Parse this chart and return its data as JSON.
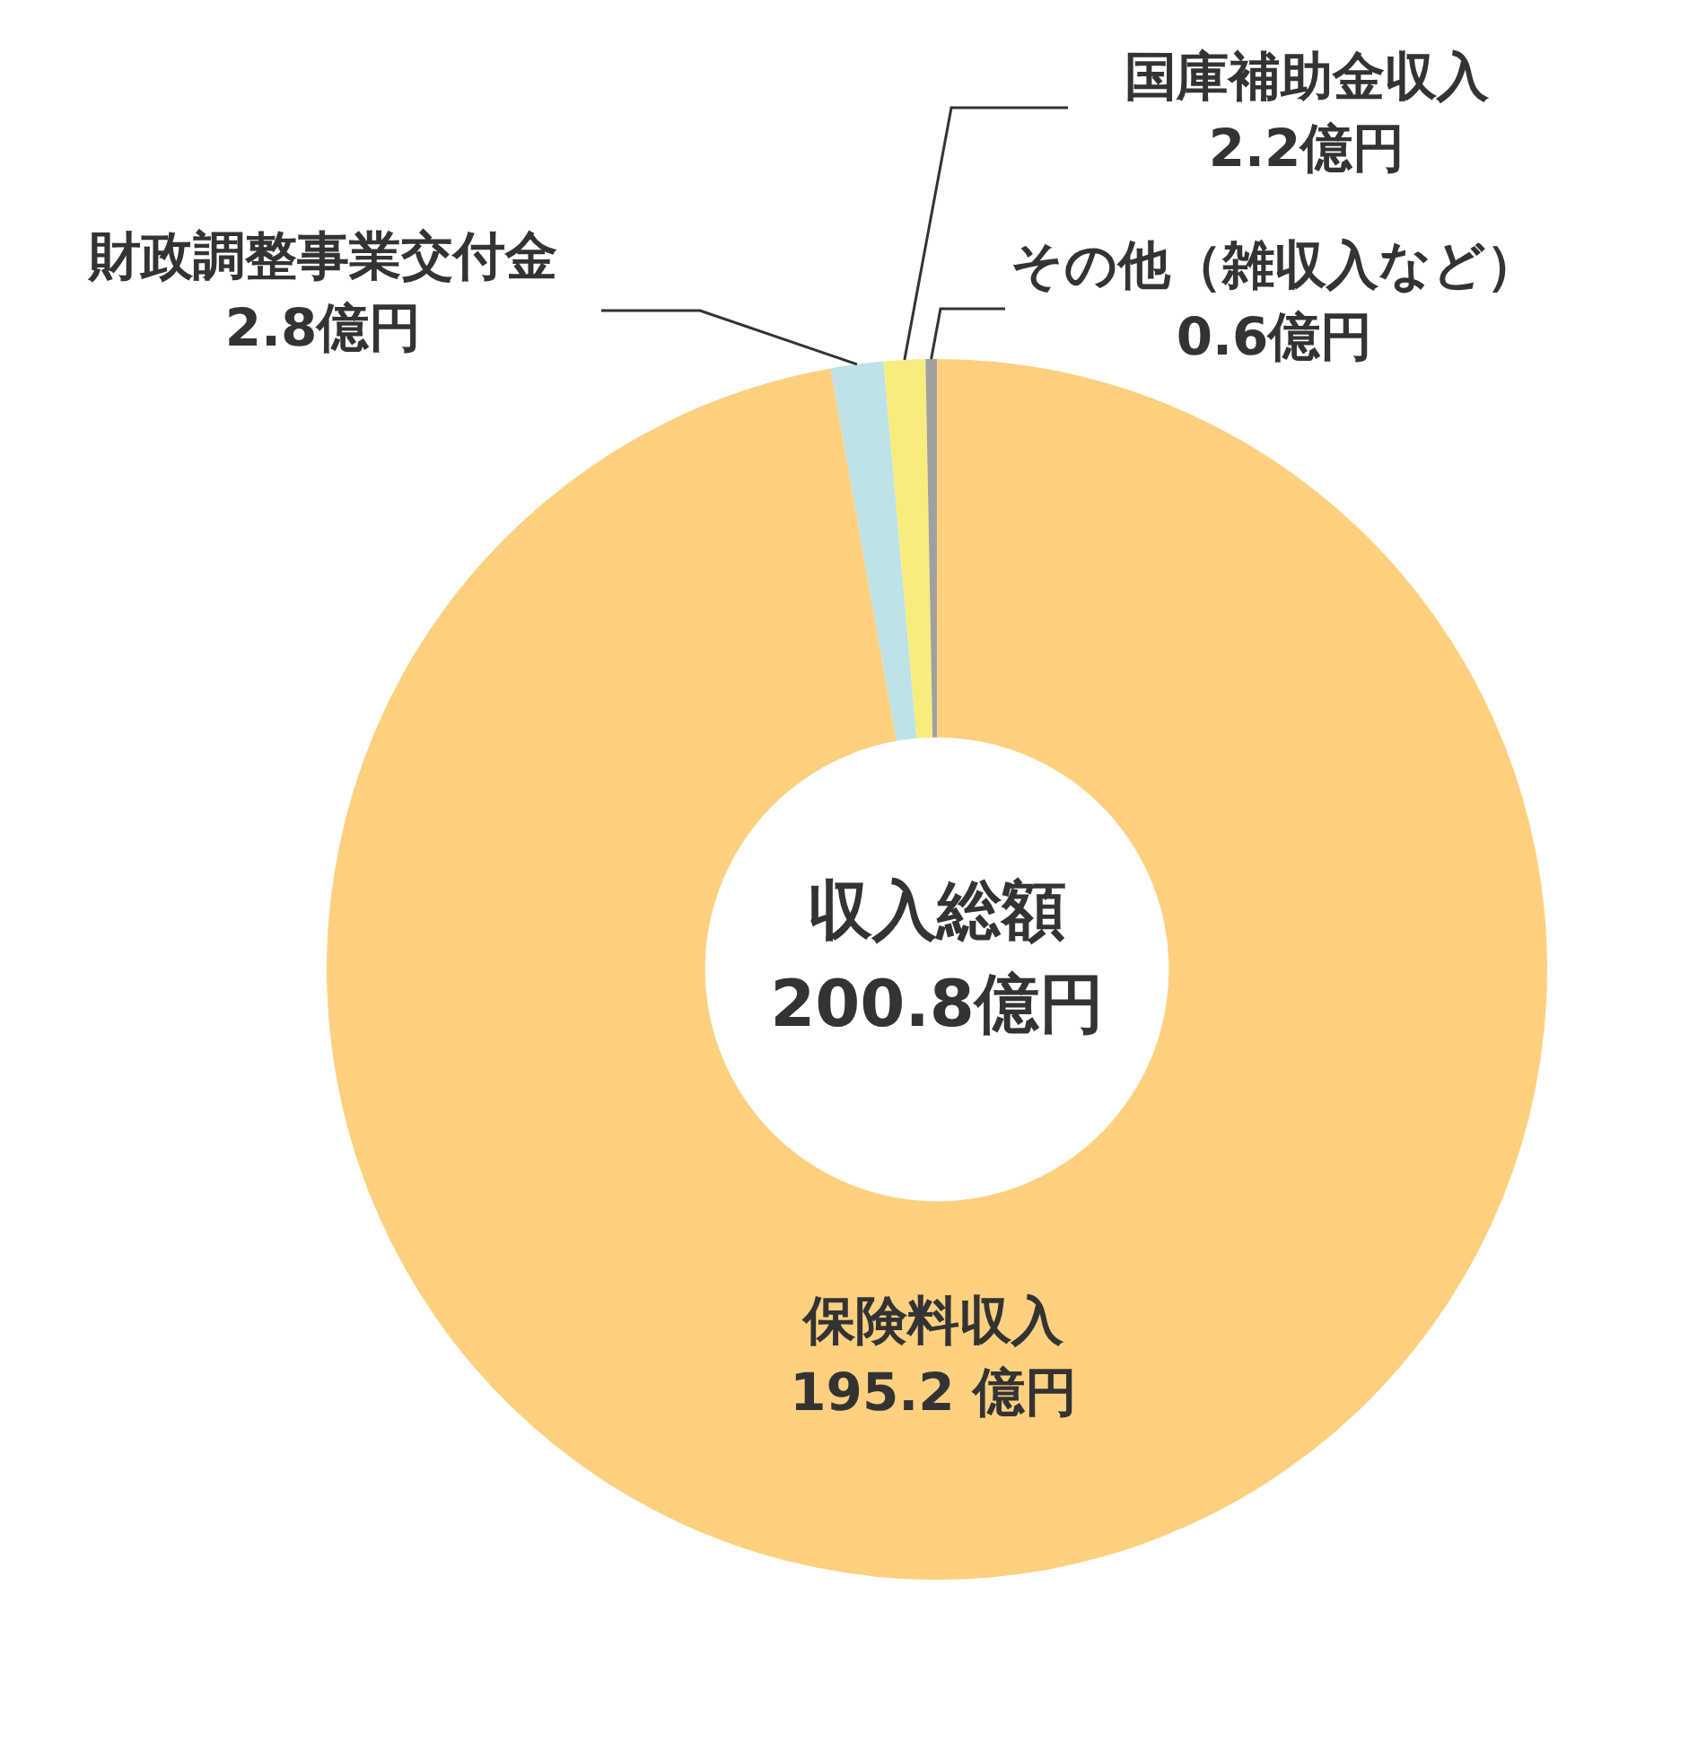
{
  "chart_data": {
    "type": "donut",
    "categories": [
      "保険料収入",
      "財政調整事業交付金",
      "国庫補助金収入",
      "その他（雑収入など）"
    ],
    "values": [
      195.2,
      2.8,
      2.2,
      0.6
    ],
    "value_labels": [
      "195.2 億円",
      "2.8億円",
      "2.2億円",
      "0.6億円"
    ],
    "colors": [
      "#fdd07f",
      "#bde2e8",
      "#f8ed7c",
      "#a0a0a0"
    ],
    "annotations": [
      "収入総額",
      "200.8億円"
    ],
    "legend": false
  }
}
